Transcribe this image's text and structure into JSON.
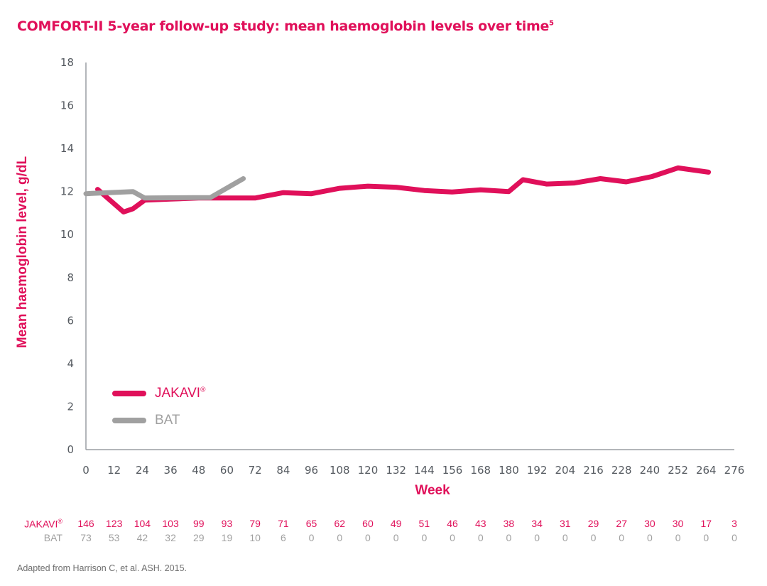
{
  "title": {
    "text": "COMFORT-II 5-year follow-up study: mean haemoglobin levels over time",
    "superscript": "5"
  },
  "axes": {
    "y_label": "Mean haemoglobin level, g/dL",
    "x_label": "Week",
    "y_ticks": [
      "0",
      "2",
      "4",
      "6",
      "8",
      "10",
      "12",
      "14",
      "16",
      "18"
    ],
    "x_ticks": [
      "0",
      "12",
      "24",
      "36",
      "48",
      "60",
      "72",
      "84",
      "96",
      "108",
      "120",
      "132",
      "144",
      "156",
      "168",
      "180",
      "192",
      "204",
      "216",
      "228",
      "240",
      "252",
      "264",
      "276"
    ]
  },
  "legend": {
    "items": [
      {
        "label": "JAKAVI",
        "superscript": "®",
        "color": "#e0105a"
      },
      {
        "label": "BAT",
        "superscript": "",
        "color": "#a0a0a0"
      }
    ]
  },
  "risk_table": {
    "rows": [
      {
        "label": "JAKAVI",
        "superscript": "®",
        "values": [
          "146",
          "123",
          "104",
          "103",
          "99",
          "93",
          "79",
          "71",
          "65",
          "62",
          "60",
          "49",
          "51",
          "46",
          "43",
          "38",
          "34",
          "31",
          "29",
          "27",
          "30",
          "30",
          "17",
          "3"
        ]
      },
      {
        "label": "BAT",
        "superscript": "",
        "values": [
          "73",
          "53",
          "42",
          "32",
          "29",
          "19",
          "10",
          "6",
          "0",
          "0",
          "0",
          "0",
          "0",
          "0",
          "0",
          "0",
          "0",
          "0",
          "0",
          "0",
          "0",
          "0",
          "0",
          "0"
        ]
      }
    ]
  },
  "footnote": "Adapted from Harrison C, et al. ASH. 2015.",
  "colors": {
    "jakavi": "#e0105a",
    "bat": "#a0a0a0",
    "axis": "#9a9ea3"
  },
  "chart_data": {
    "type": "line",
    "title": "COMFORT-II 5-year follow-up study: mean haemoglobin levels over time",
    "xlabel": "Week",
    "ylabel": "Mean haemoglobin level, g/dL",
    "xlim": [
      0,
      276
    ],
    "ylim": [
      0,
      18
    ],
    "x_ticks": [
      0,
      12,
      24,
      36,
      48,
      60,
      72,
      84,
      96,
      108,
      120,
      132,
      144,
      156,
      168,
      180,
      192,
      204,
      216,
      228,
      240,
      252,
      264,
      276
    ],
    "y_ticks": [
      0,
      2,
      4,
      6,
      8,
      10,
      12,
      14,
      16,
      18
    ],
    "grid": false,
    "legend_position": "lower left",
    "series": [
      {
        "name": "JAKAVI®",
        "color": "#e0105a",
        "x": [
          5,
          16,
          20,
          25,
          36,
          48,
          60,
          72,
          84,
          96,
          108,
          120,
          132,
          144,
          156,
          168,
          180,
          186,
          196,
          208,
          219,
          230,
          241,
          252,
          265
        ],
        "y": [
          12.1,
          11.05,
          11.2,
          11.6,
          11.65,
          11.7,
          11.7,
          11.7,
          11.95,
          11.9,
          12.15,
          12.25,
          12.2,
          12.05,
          11.98,
          12.08,
          12.0,
          12.55,
          12.35,
          12.4,
          12.6,
          12.45,
          12.7,
          13.1,
          12.9
        ]
      },
      {
        "name": "BAT",
        "color": "#a0a0a0",
        "x": [
          0,
          20,
          25,
          53,
          67
        ],
        "y": [
          11.9,
          12.0,
          11.7,
          11.72,
          12.6
        ]
      }
    ],
    "numbers_at_risk": {
      "weeks": [
        0,
        12,
        24,
        36,
        48,
        60,
        72,
        84,
        96,
        108,
        120,
        132,
        144,
        156,
        168,
        180,
        192,
        204,
        216,
        228,
        240,
        252,
        264,
        276
      ],
      "JAKAVI®": [
        146,
        123,
        104,
        103,
        99,
        93,
        79,
        71,
        65,
        62,
        60,
        49,
        51,
        46,
        43,
        38,
        34,
        31,
        29,
        27,
        30,
        30,
        17,
        3
      ],
      "BAT": [
        73,
        53,
        42,
        32,
        29,
        19,
        10,
        6,
        0,
        0,
        0,
        0,
        0,
        0,
        0,
        0,
        0,
        0,
        0,
        0,
        0,
        0,
        0,
        0
      ]
    },
    "annotations": [
      "Adapted from Harrison C, et al. ASH. 2015."
    ]
  }
}
